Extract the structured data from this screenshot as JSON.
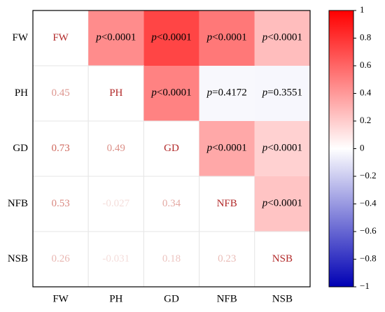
{
  "chart_data": {
    "type": "heatmap",
    "categories": [
      "FW",
      "PH",
      "GD",
      "NFB",
      "NSB"
    ],
    "values": [
      [
        null,
        0.45,
        0.73,
        0.53,
        0.26
      ],
      [
        0.45,
        null,
        0.49,
        -0.027,
        -0.031
      ],
      [
        0.73,
        0.49,
        null,
        0.34,
        0.18
      ],
      [
        0.53,
        -0.027,
        0.34,
        null,
        0.23
      ],
      [
        0.26,
        -0.031,
        0.18,
        0.23,
        null
      ]
    ],
    "p_labels": [
      [
        null,
        "p<0.0001",
        "p<0.0001",
        "p<0.0001",
        "p<0.0001"
      ],
      [
        null,
        null,
        "p<0.0001",
        "p=0.4172",
        "p=0.3551"
      ],
      [
        null,
        null,
        null,
        "p<0.0001",
        "p<0.0001"
      ],
      [
        null,
        null,
        null,
        null,
        "p<0.0001"
      ],
      [
        null,
        null,
        null,
        null,
        null
      ]
    ],
    "colors": {
      "low": "#0000b4",
      "mid": "#ffffff",
      "high": "#ff0000"
    },
    "clim": [
      -1,
      1
    ],
    "cticks": [
      {
        "value": -1,
        "label": "−1"
      },
      {
        "value": -0.8,
        "label": "−0.8"
      },
      {
        "value": -0.6,
        "label": "−0.6"
      },
      {
        "value": -0.4,
        "label": "−0.4"
      },
      {
        "value": -0.2,
        "label": "−0.2"
      },
      0,
      0.2,
      0.4,
      0.6,
      0.8,
      1
    ]
  }
}
